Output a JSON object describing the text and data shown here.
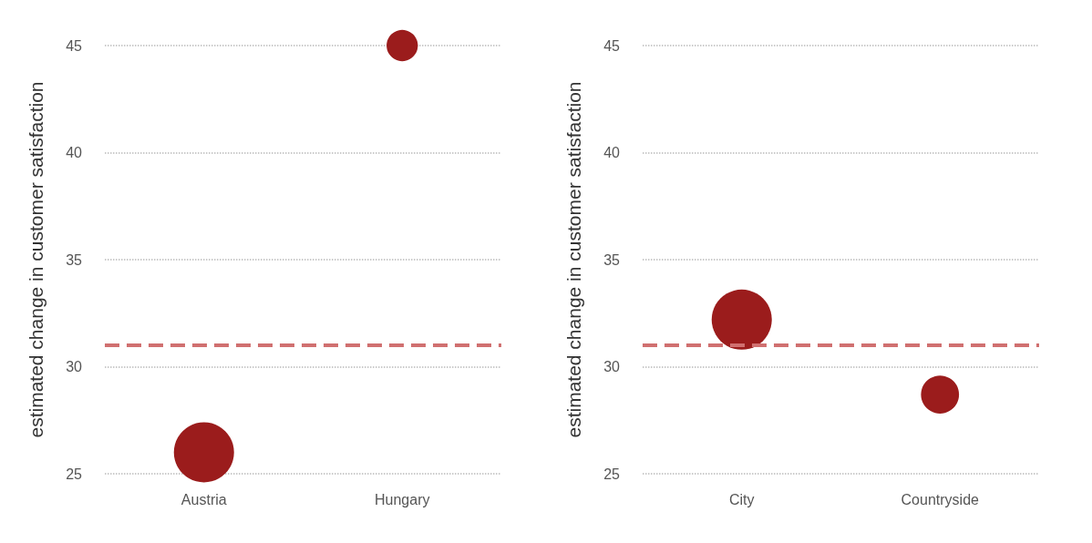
{
  "chart_data": [
    {
      "type": "bubble",
      "ylabel": "estimated change in customer satisfaction",
      "categories": [
        "Austria",
        "Hungary"
      ],
      "values": [
        26,
        45
      ],
      "sizes": [
        1,
        0.27
      ],
      "color": "#9b1c1c",
      "ylim": [
        25,
        45
      ],
      "yticks": [
        25,
        30,
        35,
        40,
        45
      ],
      "grid": "y",
      "ref_lines": [
        {
          "axis": "y",
          "value": 31,
          "color": "#d07070",
          "line_style": "dashed"
        }
      ]
    },
    {
      "type": "bubble",
      "ylabel": "estimated change in customer satisfaction",
      "categories": [
        "City",
        "Countryside"
      ],
      "values": [
        32.2,
        28.7
      ],
      "sizes": [
        1,
        0.4
      ],
      "color": "#9b1c1c",
      "ylim": [
        25,
        45
      ],
      "yticks": [
        25,
        30,
        35,
        40,
        45
      ],
      "grid": "y",
      "ref_lines": [
        {
          "axis": "y",
          "value": 31,
          "color": "#d07070",
          "line_style": "dashed"
        }
      ]
    }
  ]
}
